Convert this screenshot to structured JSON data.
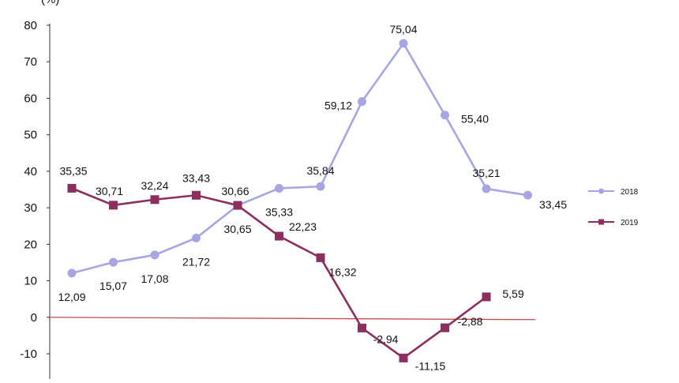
{
  "chart_data": {
    "type": "line",
    "ylabel": "(%)",
    "ylim": [
      -10,
      80
    ],
    "yticks": [
      80,
      70,
      60,
      50,
      40,
      30,
      20,
      10,
      0,
      -10
    ],
    "ytick_labels": [
      "80",
      "70",
      "60",
      "50",
      "40",
      "30",
      "20",
      "10",
      "0",
      "-10"
    ],
    "grid": false,
    "zero_line": true,
    "legend_position": "right",
    "series": [
      {
        "name": "2018",
        "color": "#a8a6e2",
        "marker": "circle",
        "values": [
          12.09,
          15.07,
          17.08,
          21.72,
          30.65,
          35.33,
          35.84,
          59.12,
          75.04,
          55.4,
          35.21,
          33.45
        ],
        "labels": [
          "12,09",
          "15,07",
          "17,08",
          "21,72",
          "30,65",
          "35,33",
          "35,84",
          "59,12",
          "75,04",
          "55,40",
          "35,21",
          "33,45"
        ]
      },
      {
        "name": "2019",
        "color": "#8b2f5e",
        "marker": "square",
        "values": [
          35.35,
          30.71,
          32.24,
          33.43,
          30.66,
          22.23,
          16.32,
          -2.94,
          -11.15,
          -2.88,
          5.59
        ],
        "labels": [
          "35,35",
          "30,71",
          "32,24",
          "33,43",
          "30,66",
          "22,23",
          "16,32",
          "-2,94",
          "-11,15",
          "-2,88",
          "5,59"
        ]
      }
    ]
  }
}
